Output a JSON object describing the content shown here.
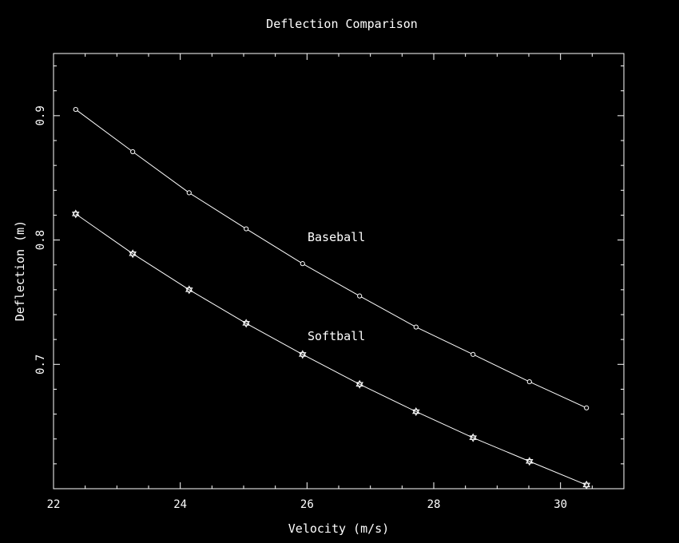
{
  "chart_data": {
    "type": "line",
    "title": "Deflection Comparison",
    "xlabel": "Velocity (m/s)",
    "ylabel": "Deflection (m)",
    "xlim": [
      22,
      31
    ],
    "ylim": [
      0.6,
      0.95
    ],
    "xticks": [
      22,
      24,
      26,
      28,
      30
    ],
    "xtick_labels": [
      "22",
      "24",
      "26",
      "28",
      "30"
    ],
    "yticks": [
      0.7,
      0.8,
      0.9
    ],
    "ytick_labels": [
      "0.7",
      "0.8",
      "0.9"
    ],
    "grid": false,
    "legend": "none",
    "colors": {
      "background": "#000000",
      "foreground": "#ffffff"
    },
    "series": [
      {
        "name": "Baseball",
        "marker": "circle",
        "x": [
          22.35,
          23.25,
          24.14,
          25.04,
          25.93,
          26.83,
          27.72,
          28.62,
          29.51,
          30.41
        ],
        "y": [
          0.905,
          0.871,
          0.838,
          0.809,
          0.781,
          0.755,
          0.73,
          0.708,
          0.686,
          0.665
        ]
      },
      {
        "name": "Softball",
        "marker": "star",
        "x": [
          22.35,
          23.25,
          24.14,
          25.04,
          25.93,
          26.83,
          27.72,
          28.62,
          29.51,
          30.41
        ],
        "y": [
          0.821,
          0.789,
          0.76,
          0.733,
          0.708,
          0.684,
          0.662,
          0.641,
          0.622,
          0.603
        ]
      }
    ]
  }
}
